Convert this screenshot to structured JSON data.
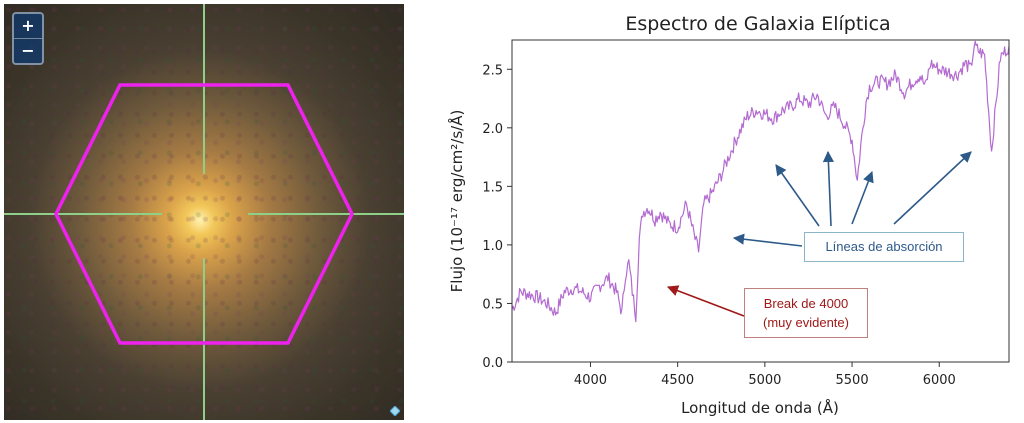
{
  "viewer": {
    "zoom_in_label": "+",
    "zoom_out_label": "−",
    "overlay_color": "#ee22ee",
    "crosshair_color": "#8fcf8a"
  },
  "chart_data": {
    "type": "line",
    "title": "Espectro de Galaxia Elíptica",
    "xlabel": "Longitud de onda (Å)",
    "ylabel": "Flujo (10⁻¹⁷ erg/cm²/s/Å)",
    "xlim": [
      3550,
      6400
    ],
    "ylim": [
      0.0,
      2.75
    ],
    "xticks": [
      4000,
      4500,
      5000,
      5500,
      6000
    ],
    "yticks": [
      0.0,
      0.5,
      1.0,
      1.5,
      2.0,
      2.5
    ],
    "xtick_labels": [
      "4000",
      "4500",
      "5000",
      "5500",
      "6000"
    ],
    "ytick_labels": [
      "0.0",
      "0.5",
      "1.0",
      "1.5",
      "2.0",
      "2.5"
    ],
    "grid": false,
    "series": [
      {
        "color": "#b36bd0",
        "x": [
          3550,
          3600,
          3650,
          3700,
          3750,
          3800,
          3850,
          3900,
          3950,
          4000,
          4050,
          4100,
          4150,
          4180,
          4200,
          4220,
          4240,
          4260,
          4280,
          4300,
          4330,
          4370,
          4400,
          4450,
          4500,
          4550,
          4600,
          4620,
          4650,
          4700,
          4750,
          4800,
          4850,
          4900,
          4950,
          5000,
          5050,
          5100,
          5150,
          5200,
          5250,
          5300,
          5350,
          5400,
          5450,
          5500,
          5530,
          5550,
          5580,
          5600,
          5650,
          5700,
          5750,
          5800,
          5850,
          5890,
          5920,
          5950,
          6000,
          6050,
          6100,
          6150,
          6180,
          6200,
          6230,
          6260,
          6300,
          6350,
          6400
        ],
        "y": [
          0.45,
          0.6,
          0.58,
          0.55,
          0.5,
          0.42,
          0.6,
          0.63,
          0.6,
          0.55,
          0.65,
          0.72,
          0.6,
          0.42,
          0.75,
          0.85,
          0.6,
          0.4,
          1.05,
          1.28,
          1.32,
          1.22,
          1.28,
          1.18,
          1.15,
          1.35,
          1.05,
          0.95,
          1.35,
          1.45,
          1.6,
          1.78,
          1.95,
          2.1,
          2.15,
          2.12,
          2.08,
          2.15,
          2.18,
          2.25,
          2.2,
          2.28,
          2.1,
          2.18,
          2.05,
          1.9,
          1.55,
          1.85,
          2.22,
          2.35,
          2.4,
          2.38,
          2.45,
          2.3,
          2.4,
          2.45,
          2.35,
          2.55,
          2.5,
          2.48,
          2.45,
          2.55,
          2.5,
          2.7,
          2.65,
          2.62,
          1.8,
          2.6,
          2.7
        ]
      }
    ],
    "annotations": [
      {
        "text": "Líneas de absorción",
        "color": "#2e5a8a"
      },
      {
        "line1": "Break de 4000",
        "line2": "(muy evidente)",
        "color": "#a01818"
      }
    ]
  }
}
